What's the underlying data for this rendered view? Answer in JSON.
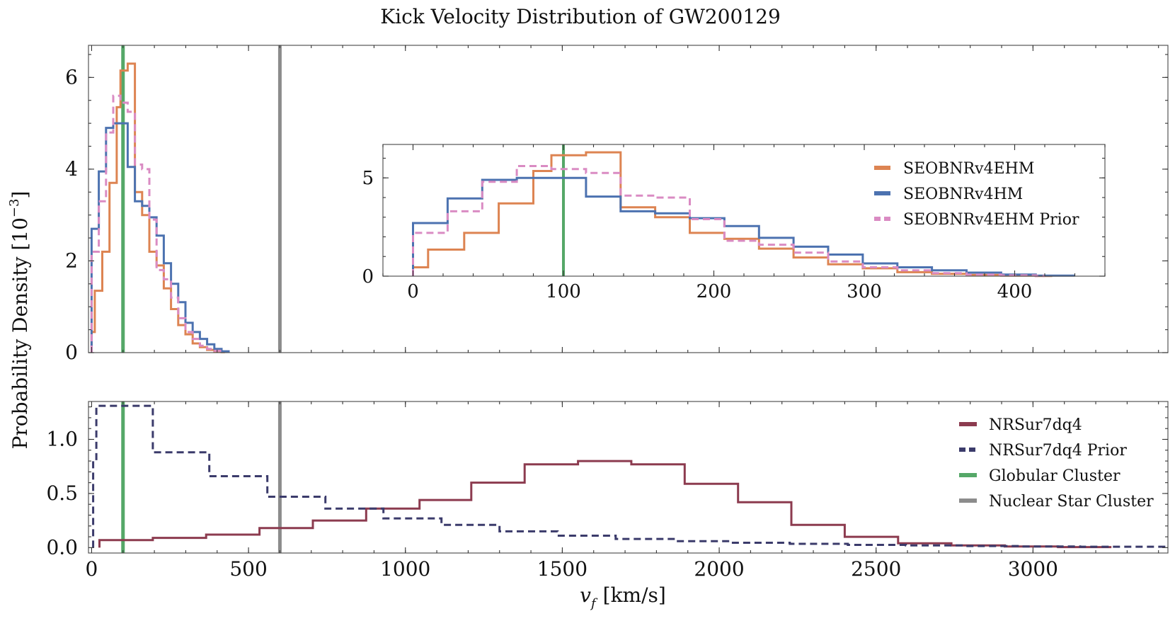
{
  "chart_data": {
    "title": "Kick Velocity Distribution of GW200129",
    "xlabel": "v_f [km/s]",
    "xlabel_main": "v",
    "xlabel_sub": "f",
    "xlabel_unit": "[km/s]",
    "ylabel": "Probability Density [10^-3]",
    "ylabel_main": "Probability Density [10",
    "ylabel_exp": "−3",
    "ylabel_close": "]",
    "colors": {
      "orange": "#dd8452",
      "blue": "#4c72b0",
      "pink": "#da8bc3",
      "maroon": "#8c3b4f",
      "navy": "#3b3b6b",
      "green": "#55a868",
      "gray": "#8c8c8c"
    },
    "panels": [
      {
        "id": "top",
        "type": "histogram-step",
        "xlim": [
          -10,
          3430
        ],
        "ylim": [
          0,
          6.7
        ],
        "yticks": [
          0,
          2,
          4,
          6
        ],
        "ytick_labels": [
          "0",
          "2",
          "4",
          "6"
        ],
        "vlines": [
          {
            "name": "Globular Cluster",
            "x": 100,
            "color": "green"
          },
          {
            "name": "Nuclear Star Cluster",
            "x": 600,
            "color": "gray"
          }
        ],
        "series": [
          {
            "name": "SEOBNRv4EHM",
            "color": "orange",
            "dash": false,
            "edges": [
              0,
              10,
              22,
              34,
              46,
              57,
              69,
              80,
              92,
              103,
              115,
              126,
              138,
              149,
              161,
              172,
              184,
              195,
              207,
              218,
              230,
              241,
              253,
              264,
              276,
              287,
              299,
              310,
              322,
              333,
              345,
              356,
              368,
              379,
              391,
              402,
              414,
              425
            ],
            "values": [
              0.45,
              1.35,
              1.35,
              2.2,
              2.2,
              3.7,
              3.7,
              5.35,
              6.15,
              6.15,
              6.3,
              6.3,
              3.5,
              3.5,
              3.0,
              3.0,
              2.2,
              2.2,
              1.9,
              1.9,
              1.4,
              1.4,
              0.95,
              0.95,
              0.6,
              0.6,
              0.4,
              0.4,
              0.2,
              0.2,
              0.12,
              0.12,
              0.06,
              0.06,
              0.03,
              0.03,
              0.01
            ]
          },
          {
            "name": "SEOBNRv4HM",
            "color": "blue",
            "dash": false,
            "edges": [
              0,
              11,
              23,
              34,
              46,
              57,
              69,
              80,
              92,
              103,
              115,
              126,
              138,
              149,
              161,
              172,
              184,
              195,
              207,
              218,
              230,
              241,
              253,
              264,
              276,
              287,
              299,
              310,
              322,
              333,
              345,
              356,
              368,
              379,
              391,
              402,
              414,
              440
            ],
            "values": [
              2.7,
              2.7,
              3.95,
              3.95,
              4.9,
              4.9,
              5.0,
              5.0,
              5.0,
              5.0,
              4.05,
              4.05,
              3.3,
              3.3,
              3.2,
              3.2,
              2.95,
              2.95,
              2.55,
              2.55,
              1.95,
              1.95,
              1.5,
              1.5,
              1.1,
              1.1,
              0.65,
              0.65,
              0.45,
              0.45,
              0.3,
              0.3,
              0.18,
              0.18,
              0.08,
              0.08,
              0.03
            ]
          },
          {
            "name": "SEOBNRv4EHM Prior",
            "color": "pink",
            "dash": true,
            "edges": [
              0,
              11,
              23,
              34,
              46,
              57,
              69,
              80,
              92,
              103,
              115,
              126,
              138,
              149,
              161,
              172,
              184,
              195,
              207,
              218,
              230,
              241,
              253,
              264,
              276,
              287,
              299,
              310,
              322,
              333,
              345,
              356,
              368,
              379,
              391,
              402,
              414,
              420
            ],
            "values": [
              2.2,
              2.2,
              3.3,
              3.3,
              4.8,
              4.8,
              5.6,
              5.6,
              5.45,
              5.45,
              5.25,
              5.25,
              4.1,
              4.1,
              4.0,
              4.0,
              2.9,
              2.9,
              1.8,
              1.8,
              1.6,
              1.6,
              1.2,
              1.2,
              0.75,
              0.75,
              0.45,
              0.45,
              0.3,
              0.3,
              0.15,
              0.15,
              0.08,
              0.08,
              0.04,
              0.04,
              0.01
            ]
          }
        ]
      },
      {
        "id": "inset",
        "type": "histogram-step",
        "xlim": [
          -20,
          460
        ],
        "ylim": [
          0,
          6.7
        ],
        "xticks": [
          0,
          100,
          200,
          300,
          400
        ],
        "xtick_labels": [
          "0",
          "100",
          "200",
          "300",
          "400"
        ],
        "yticks": [
          0,
          5
        ],
        "ytick_labels": [
          "0",
          "5"
        ],
        "vline": {
          "name": "Globular Cluster",
          "x": 100,
          "color": "green"
        },
        "legend_position": "top-right",
        "legend": [
          "SEOBNRv4EHM",
          "SEOBNRv4HM",
          "SEOBNRv4EHM Prior"
        ]
      },
      {
        "id": "bottom",
        "type": "histogram-step",
        "xlim": [
          -10,
          3430
        ],
        "ylim": [
          -0.05,
          1.35
        ],
        "xticks": [
          0,
          500,
          1000,
          1500,
          2000,
          2500,
          3000
        ],
        "xtick_labels": [
          "0",
          "500",
          "1000",
          "1500",
          "2000",
          "2500",
          "3000"
        ],
        "yticks": [
          0.0,
          0.5,
          1.0
        ],
        "ytick_labels": [
          "0.0",
          "0.5",
          "1.0"
        ],
        "legend_position": "top-right",
        "legend": [
          {
            "name": "NRSur7dq4",
            "color": "maroon",
            "dash": false
          },
          {
            "name": "NRSur7dq4 Prior",
            "color": "navy",
            "dash": true
          },
          {
            "name": "Globular Cluster",
            "color": "green",
            "dash": false
          },
          {
            "name": "Nuclear Star Cluster",
            "color": "gray",
            "dash": false
          }
        ],
        "vlines": [
          {
            "name": "Globular Cluster",
            "x": 100,
            "color": "green"
          },
          {
            "name": "Nuclear Star Cluster",
            "x": 600,
            "color": "gray"
          }
        ],
        "series": [
          {
            "name": "NRSur7dq4",
            "color": "maroon",
            "dash": false,
            "edges": [
              25,
              195,
              365,
              535,
              705,
              875,
              1045,
              1210,
              1380,
              1550,
              1720,
              1890,
              2060,
              2230,
              2400,
              2570,
              2740,
              2910,
              3080,
              3250
            ],
            "values": [
              0.07,
              0.09,
              0.12,
              0.18,
              0.25,
              0.36,
              0.44,
              0.6,
              0.77,
              0.8,
              0.77,
              0.59,
              0.42,
              0.21,
              0.1,
              0.04,
              0.02,
              0.01,
              0.005
            ]
          },
          {
            "name": "NRSur7dq4 Prior",
            "color": "navy",
            "dash": true,
            "edges": [
              5,
              15,
              195,
              375,
              560,
              745,
              930,
              1115,
              1300,
              1485,
              1670,
              1855,
              2040,
              2225,
              2410,
              2595,
              2780,
              2965,
              3150,
              3430
            ],
            "values": [
              0.8,
              1.31,
              0.88,
              0.66,
              0.47,
              0.36,
              0.27,
              0.21,
              0.15,
              0.11,
              0.08,
              0.06,
              0.045,
              0.035,
              0.025,
              0.02,
              0.015,
              0.01,
              0.008
            ]
          }
        ]
      }
    ]
  }
}
